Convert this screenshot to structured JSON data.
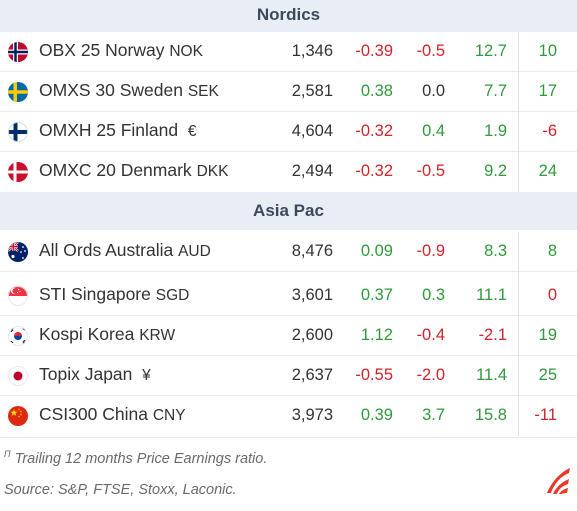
{
  "sections": {
    "nordics": {
      "title": "Nordics",
      "rows": [
        {
          "flag": "norway-flag-icon",
          "name": "OBX 25 Norway",
          "ccy": "NOK",
          "level": "1,346",
          "c2": "-0.39",
          "c3": "-0.5",
          "c4": "12.7",
          "c5": "10"
        },
        {
          "flag": "sweden-flag-icon",
          "name": "OMXS 30 Sweden",
          "ccy": "SEK",
          "level": "2,581",
          "c2": "0.38",
          "c3": "0.0",
          "c4": "7.7",
          "c5": "17"
        },
        {
          "flag": "finland-flag-icon",
          "name": "OMXH 25 Finland",
          "ccy": "€",
          "level": "4,604",
          "c2": "-0.32",
          "c3": "0.4",
          "c4": "1.9",
          "c5": "-6"
        },
        {
          "flag": "denmark-flag-icon",
          "name": "OMXC 20 Denmark",
          "ccy": "DKK",
          "level": "2,494",
          "c2": "-0.32",
          "c3": "-0.5",
          "c4": "9.2",
          "c5": "24"
        }
      ]
    },
    "asiapac": {
      "title": "Asia Pac",
      "rows": [
        {
          "flag": "australia-flag-icon",
          "name": "All Ords Australia",
          "ccy": "AUD",
          "level": "8,476",
          "c2": "0.09",
          "c3": "-0.9",
          "c4": "8.3",
          "c5": "8"
        },
        {
          "flag": "singapore-flag-icon",
          "name": "STI Singapore",
          "ccy": "SGD",
          "level": "3,601",
          "c2": "0.37",
          "c3": "0.3",
          "c4": "11.1",
          "c5": "0"
        },
        {
          "flag": "korea-flag-icon",
          "name": "Kospi Korea",
          "ccy": "KRW",
          "level": "2,600",
          "c2": "1.12",
          "c3": "-0.4",
          "c4": "-2.1",
          "c5": "19"
        },
        {
          "flag": "japan-flag-icon",
          "name": "Topix Japan",
          "ccy": "¥",
          "level": "2,637",
          "c2": "-0.55",
          "c3": "-2.0",
          "c4": "11.4",
          "c5": "25"
        },
        {
          "flag": "china-flag-icon",
          "name": "CSI300 China",
          "ccy": "CNY",
          "level": "3,973",
          "c2": "0.39",
          "c3": "3.7",
          "c4": "15.8",
          "c5": "-11"
        }
      ]
    }
  },
  "footer": {
    "footnote_mark": "Π",
    "footnote": "Trailing 12 months Price Earnings ratio.",
    "source": "Source: S&P, FTSE, Stoxx, Laconic.",
    "logo_icon": "laconic-logo-icon"
  },
  "colors": {
    "positive": "#2f9a3a",
    "negative": "#d2232a",
    "header_bg": "#e8eef4",
    "logo": "#e8392b"
  }
}
